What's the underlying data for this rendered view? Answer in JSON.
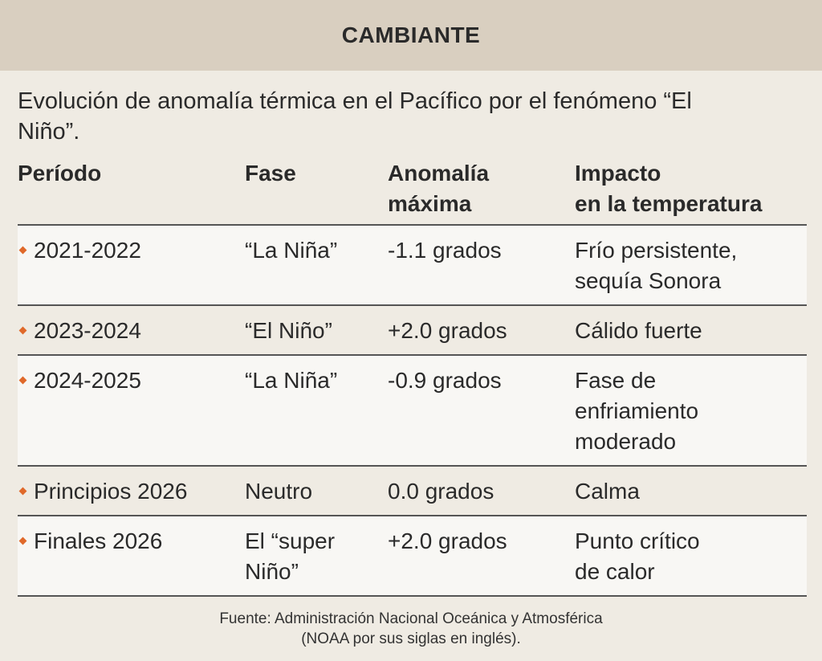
{
  "header": {
    "title": "CAMBIANTE"
  },
  "subtitle": [
    "Evolución de anomalía térmica en el Pacífico por el fenómeno “El",
    "Niño”."
  ],
  "table": {
    "columns": [
      [
        "Período"
      ],
      [
        "Fase"
      ],
      [
        "Anomalía",
        "máxima"
      ],
      [
        "Impacto",
        "en la temperatura"
      ]
    ],
    "rows": [
      [
        [
          "2021-2022"
        ],
        [
          "“La Niña”"
        ],
        [
          "-1.1 grados"
        ],
        [
          "Frío persistente,",
          "sequía Sonora"
        ]
      ],
      [
        [
          "2023-2024"
        ],
        [
          "“El Niño”"
        ],
        [
          "+2.0 grados"
        ],
        [
          "Cálido fuerte"
        ]
      ],
      [
        [
          "2024-2025"
        ],
        [
          "“La Niña”"
        ],
        [
          "-0.9 grados"
        ],
        [
          "Fase de",
          "enfriamiento",
          "moderado"
        ]
      ],
      [
        [
          "Principios 2026"
        ],
        [
          "Neutro"
        ],
        [
          "0.0 grados"
        ],
        [
          "Calma"
        ]
      ],
      [
        [
          "Finales 2026"
        ],
        [
          "El “super",
          "Niño”"
        ],
        [
          "+2.0 grados"
        ],
        [
          "Punto crítico",
          "de calor"
        ]
      ]
    ]
  },
  "footer": [
    "Fuente: Administración Nacional Oceánica y Atmosférica",
    "(NOAA por sus siglas en inglés)."
  ]
}
